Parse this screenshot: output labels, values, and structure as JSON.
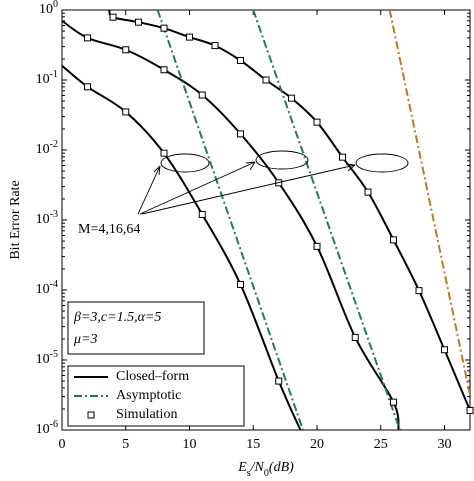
{
  "chart_data": {
    "type": "line",
    "yscale": "log",
    "xlabel": "E_s/N_0(dB)",
    "ylabel": "Bit Error Rate",
    "xlim": [
      0,
      32
    ],
    "ylim": [
      1e-06,
      1
    ],
    "xticks": [
      0,
      5,
      10,
      15,
      20,
      25,
      30
    ],
    "yticks": [
      {
        "value": 1e-06,
        "label": "10^-6"
      },
      {
        "value": 1e-05,
        "label": "10^-5"
      },
      {
        "value": 0.0001,
        "label": "10^-4"
      },
      {
        "value": 0.001,
        "label": "10^-3"
      },
      {
        "value": 0.01,
        "label": "10^-2"
      },
      {
        "value": 0.1,
        "label": "10^-1"
      },
      {
        "value": 1,
        "label": "10^0"
      }
    ],
    "legend_position": "lower left",
    "annotations": [
      "M=4,16,64",
      "β=3,c=1.5,α=5",
      "μ=3"
    ],
    "series": [
      {
        "name": "Closed–form",
        "style": "solid",
        "color": "#000000",
        "curves": [
          {
            "x": [
              0,
              2,
              5,
              8,
              11,
              14,
              17,
              18.7
            ],
            "values": [
              0.16,
              0.08,
              0.035,
              0.009,
              0.0012,
              0.00012,
              5e-06,
              1e-06
            ]
          },
          {
            "x": [
              0,
              2,
              5,
              8,
              11,
              14,
              17,
              20,
              23,
              26,
              26.4
            ],
            "values": [
              0.7,
              0.4,
              0.27,
              0.14,
              0.061,
              0.017,
              0.0034,
              0.00042,
              2.1e-05,
              2.5e-06,
              1e-06
            ]
          },
          {
            "x": [
              3.7,
              4,
              6,
              8,
              10,
              12,
              14,
              16,
              18,
              20,
              22,
              24,
              26,
              28,
              30,
              32
            ],
            "values": [
              1,
              0.79,
              0.67,
              0.55,
              0.41,
              0.31,
              0.19,
              0.1,
              0.055,
              0.025,
              0.0079,
              0.0025,
              0.00052,
              9.8e-05,
              1.4e-05,
              1.9e-06
            ]
          }
        ]
      },
      {
        "name": "Asymptotic",
        "style": "dashdot",
        "curves": [
          {
            "color": "#1a7f5a",
            "x": [
              7.5,
              18.9
            ],
            "values": [
              1,
              1e-06
            ]
          },
          {
            "color": "#1a7f5a",
            "x": [
              15,
              26.5
            ],
            "values": [
              1,
              1e-06
            ]
          },
          {
            "color": "#c07a1a",
            "x": [
              25.7,
              32
            ],
            "values": [
              1,
              3.2e-06
            ]
          }
        ]
      },
      {
        "name": "Simulation",
        "style": "marker",
        "color": "#000000",
        "curves": [
          {
            "x": [
              2,
              5,
              8,
              11,
              14,
              17
            ],
            "values": [
              0.08,
              0.035,
              0.009,
              0.0012,
              0.00012,
              5e-06
            ]
          },
          {
            "x": [
              2,
              5,
              8,
              11,
              14,
              17,
              20,
              23,
              26
            ],
            "values": [
              0.4,
              0.27,
              0.14,
              0.061,
              0.017,
              0.0034,
              0.00042,
              2.1e-05,
              2.5e-06
            ]
          },
          {
            "x": [
              4,
              6,
              8,
              10,
              12,
              14,
              16,
              18,
              20,
              22,
              24,
              26,
              28,
              30,
              32
            ],
            "values": [
              0.79,
              0.67,
              0.55,
              0.41,
              0.31,
              0.19,
              0.1,
              0.055,
              0.025,
              0.0079,
              0.0025,
              0.00052,
              9.8e-05,
              1.4e-05,
              1.9e-06
            ]
          }
        ]
      }
    ]
  }
}
